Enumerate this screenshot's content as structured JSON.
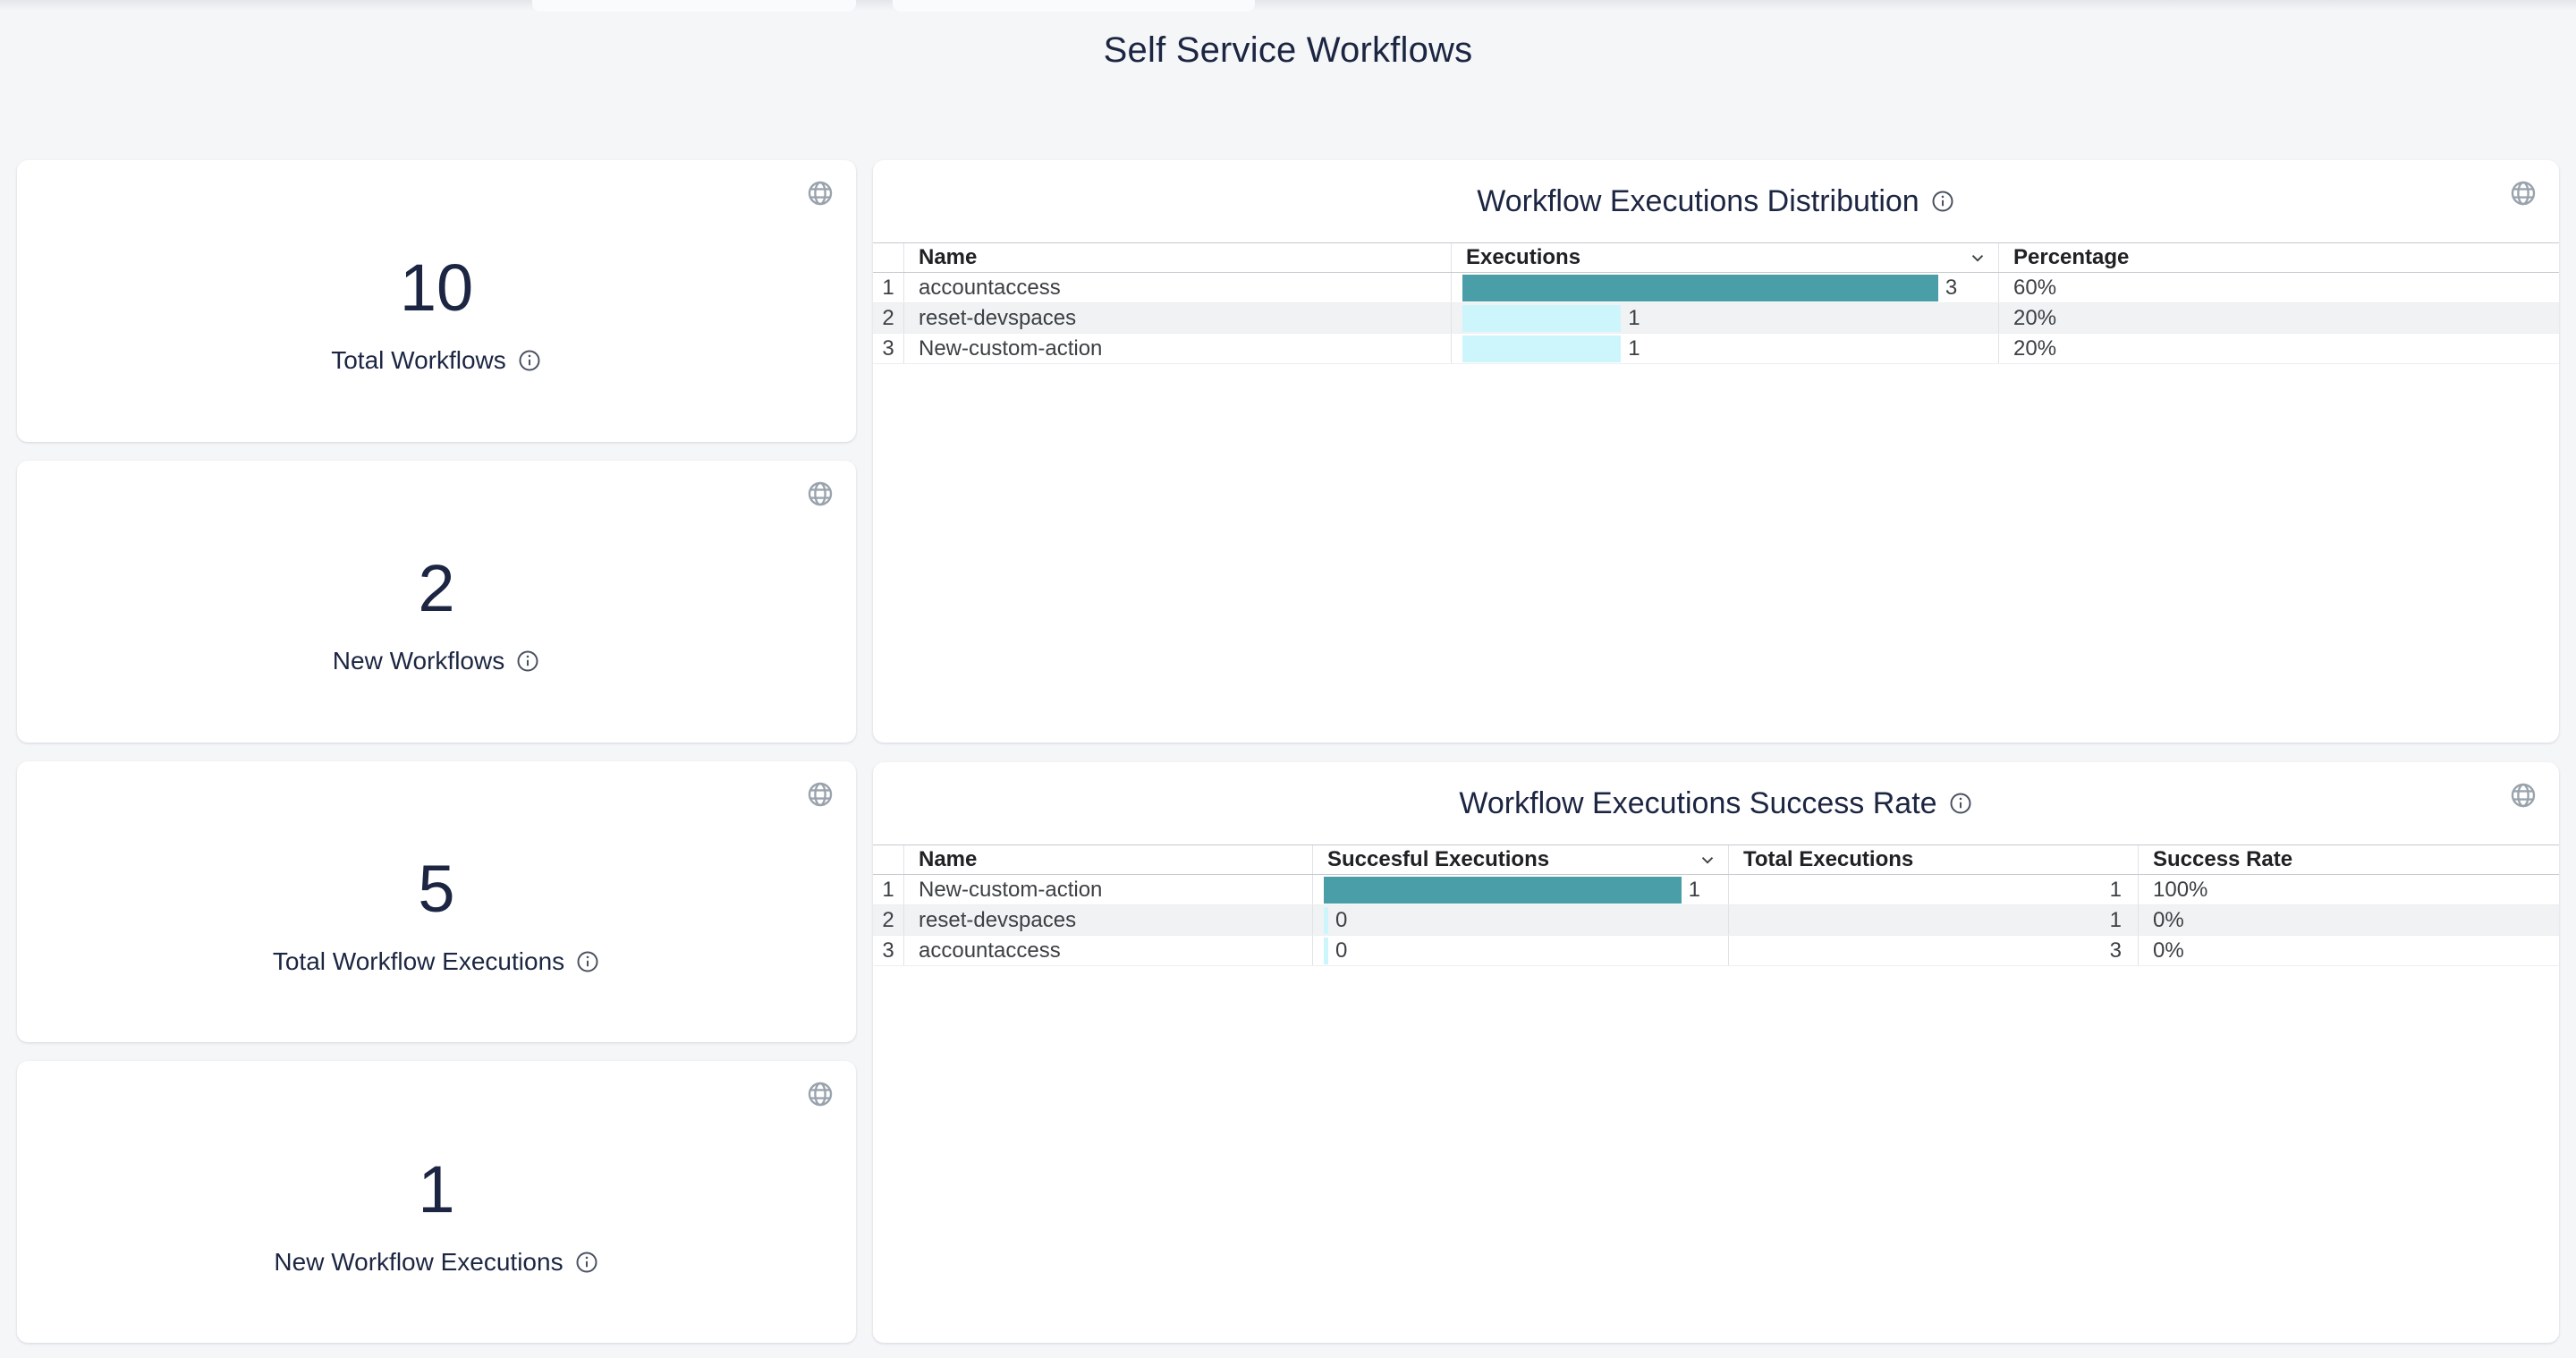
{
  "page": {
    "title": "Self Service Workflows"
  },
  "colors": {
    "bar_primary": "#4A9EA8",
    "bar_secondary": "#CDF5FC",
    "page_background": "#F5F6F8",
    "heading_text": "#1C2642"
  },
  "stat_cards": [
    {
      "value": "10",
      "label": "Total Workflows",
      "corner_icon": "globe",
      "label_icon": "info"
    },
    {
      "value": "2",
      "label": "New Workflows",
      "corner_icon": "globe",
      "label_icon": "info"
    },
    {
      "value": "5",
      "label": "Total Workflow Executions",
      "corner_icon": "globe",
      "label_icon": "info"
    },
    {
      "value": "1",
      "label": "New Workflow Executions",
      "corner_icon": "globe",
      "label_icon": "info"
    }
  ],
  "distribution_table": {
    "title": "Workflow Executions Distribution",
    "title_icon": "info",
    "corner_icon": "globe",
    "sort_icon": "chevron-down",
    "columns": {
      "name": "Name",
      "executions": "Executions",
      "percentage": "Percentage"
    },
    "max_executions": 3,
    "rows": [
      {
        "index": "1",
        "name": "accountaccess",
        "executions": 3,
        "percentage": "60%"
      },
      {
        "index": "2",
        "name": "reset-devspaces",
        "executions": 1,
        "percentage": "20%"
      },
      {
        "index": "3",
        "name": "New-custom-action",
        "executions": 1,
        "percentage": "20%"
      }
    ]
  },
  "success_table": {
    "title": "Workflow Executions Success Rate",
    "title_icon": "info",
    "corner_icon": "globe",
    "sort_icon": "chevron-down",
    "columns": {
      "name": "Name",
      "successful": "Succesful Executions",
      "total": "Total Executions",
      "rate": "Success Rate"
    },
    "max_successful": 1,
    "rows": [
      {
        "index": "1",
        "name": "New-custom-action",
        "successful": 1,
        "total": "1",
        "rate": "100%"
      },
      {
        "index": "2",
        "name": "reset-devspaces",
        "successful": 0,
        "total": "1",
        "rate": "0%"
      },
      {
        "index": "3",
        "name": "accountaccess",
        "successful": 0,
        "total": "3",
        "rate": "0%"
      }
    ]
  },
  "chart_data": [
    {
      "type": "bar",
      "title": "Workflow Executions Distribution",
      "categories": [
        "accountaccess",
        "reset-devspaces",
        "New-custom-action"
      ],
      "values": [
        3,
        1,
        1
      ],
      "percentages": [
        "60%",
        "20%",
        "20%"
      ],
      "xlabel": "Executions",
      "ylabel": "Name",
      "xlim": [
        0,
        3
      ],
      "orientation": "horizontal",
      "grid": false,
      "legend": "none"
    },
    {
      "type": "bar",
      "title": "Workflow Executions Success Rate",
      "categories": [
        "New-custom-action",
        "reset-devspaces",
        "accountaccess"
      ],
      "series": [
        {
          "name": "Succesful Executions",
          "values": [
            1,
            0,
            0
          ]
        },
        {
          "name": "Total Executions",
          "values": [
            1,
            1,
            3
          ]
        }
      ],
      "success_rate": [
        "100%",
        "0%",
        "0%"
      ],
      "xlim": [
        0,
        1
      ],
      "orientation": "horizontal",
      "grid": false,
      "legend": "none"
    }
  ]
}
